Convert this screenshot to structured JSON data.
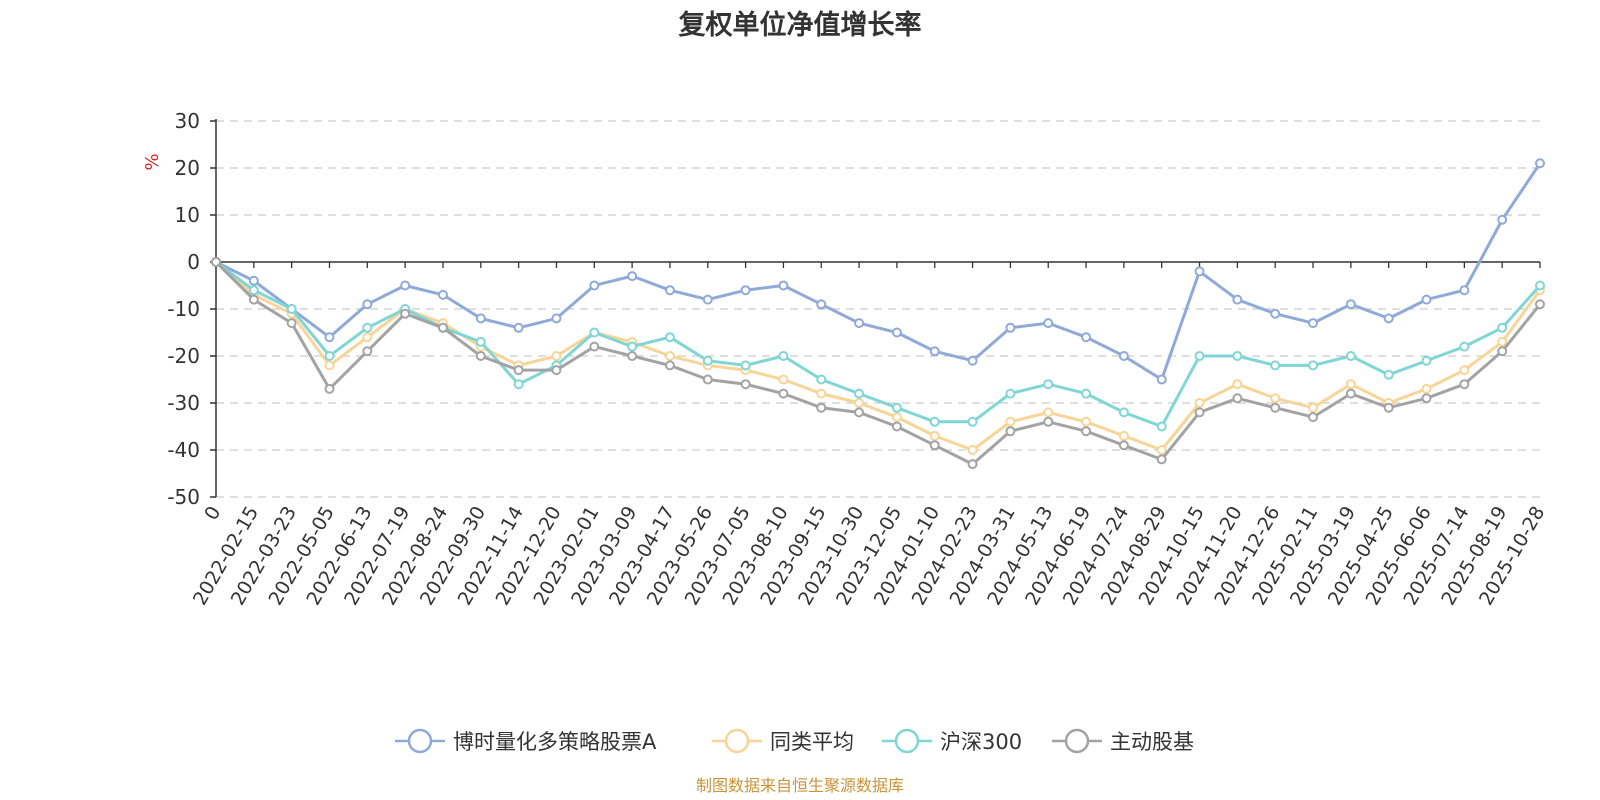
{
  "chart_data": {
    "type": "line",
    "title": "复权单位净值增长率",
    "ylabel": "%",
    "ylim": [
      -50,
      30
    ],
    "yticks": [
      30,
      20,
      10,
      0,
      -10,
      -20,
      -30,
      -40,
      -50
    ],
    "x_tick_labels": [
      "0",
      "2022-02-15",
      "2022-03-23",
      "2022-05-05",
      "2022-06-13",
      "2022-07-19",
      "2022-08-24",
      "2022-09-30",
      "2022-11-14",
      "2022-12-20",
      "2023-02-01",
      "2023-03-09",
      "2023-04-17",
      "2023-05-26",
      "2023-07-05",
      "2023-08-10",
      "2023-09-15",
      "2023-10-30",
      "2023-12-05",
      "2024-01-10",
      "2024-02-23",
      "2024-03-31",
      "2024-05-13",
      "2024-06-19",
      "2024-07-24",
      "2024-08-29",
      "2024-10-15",
      "2024-11-20",
      "2024-12-26",
      "2025-02-11",
      "2025-03-19",
      "2025-04-25",
      "2025-06-06",
      "2025-07-14",
      "2025-08-19",
      "2025-10-28"
    ],
    "x": [
      0,
      1,
      2,
      3,
      4,
      5,
      6,
      7,
      8,
      9,
      10,
      11,
      12,
      13,
      14,
      15,
      16,
      17,
      18,
      19,
      20,
      21,
      22,
      23,
      24,
      25,
      26,
      27,
      28,
      29,
      30,
      31,
      32,
      33,
      34,
      35
    ],
    "series": [
      {
        "name": "博时量化多策略股票A",
        "color": "#8fa9d8",
        "values": [
          0,
          -4,
          -10,
          -16,
          -9,
          -5,
          -7,
          -12,
          -14,
          -12,
          -5,
          -3,
          -6,
          -8,
          -6,
          -5,
          -9,
          -13,
          -15,
          -19,
          -21,
          -14,
          -13,
          -16,
          -20,
          -25,
          -2,
          -8,
          -11,
          -13,
          -9,
          -12,
          -8,
          -6,
          9,
          21
        ]
      },
      {
        "name": "同类平均",
        "color": "#f8d596",
        "values": [
          0,
          -7,
          -11,
          -22,
          -16,
          -10,
          -13,
          -18,
          -22,
          -20,
          -15,
          -17,
          -20,
          -22,
          -23,
          -25,
          -28,
          -30,
          -33,
          -37,
          -40,
          -34,
          -32,
          -34,
          -37,
          -40,
          -30,
          -26,
          -29,
          -31,
          -26,
          -30,
          -27,
          -23,
          -17,
          -6
        ]
      },
      {
        "name": "沪深300",
        "color": "#7fd6d5",
        "values": [
          0,
          -6,
          -10,
          -20,
          -14,
          -10,
          -14,
          -17,
          -26,
          -22,
          -15,
          -18,
          -16,
          -21,
          -22,
          -20,
          -25,
          -28,
          -31,
          -34,
          -34,
          -28,
          -26,
          -28,
          -32,
          -35,
          -20,
          -20,
          -22,
          -22,
          -20,
          -24,
          -21,
          -18,
          -14,
          -5
        ]
      },
      {
        "name": "主动股基",
        "color": "#a3a3a3",
        "values": [
          0,
          -8,
          -13,
          -27,
          -19,
          -11,
          -14,
          -20,
          -23,
          -23,
          -18,
          -20,
          -22,
          -25,
          -26,
          -28,
          -31,
          -32,
          -35,
          -39,
          -43,
          -36,
          -34,
          -36,
          -39,
          -42,
          -32,
          -29,
          -31,
          -33,
          -28,
          -31,
          -29,
          -26,
          -19,
          -9
        ]
      }
    ],
    "legend_position": "bottom",
    "grid": true
  },
  "source_note": "制图数据来自恒生聚源数据库"
}
